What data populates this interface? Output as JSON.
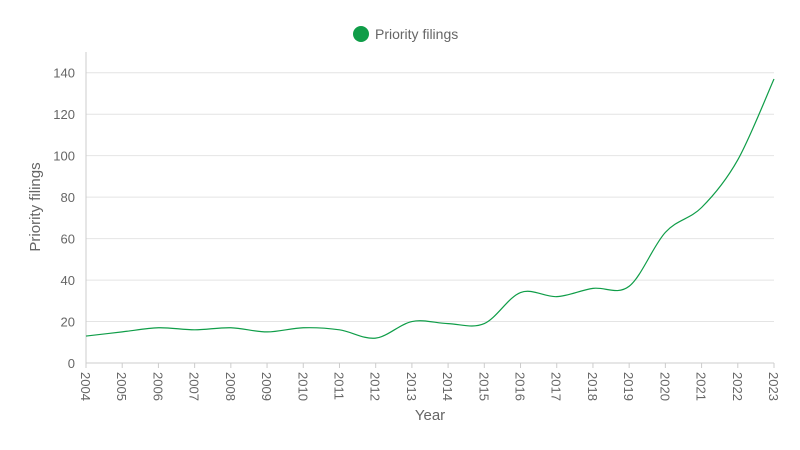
{
  "chart_data": {
    "type": "line",
    "x": [
      "2004",
      "2005",
      "2006",
      "2007",
      "2008",
      "2009",
      "2010",
      "2011",
      "2012",
      "2013",
      "2014",
      "2015",
      "2016",
      "2017",
      "2018",
      "2019",
      "2020",
      "2021",
      "2022",
      "2023"
    ],
    "series": [
      {
        "name": "Priority filings",
        "color": "#0f9d48",
        "values": [
          13,
          15,
          17,
          16,
          17,
          15,
          17,
          16,
          12,
          20,
          19,
          19,
          34,
          32,
          36,
          37,
          63,
          75,
          98,
          137
        ]
      }
    ],
    "xlabel": "Year",
    "ylabel": "Priority filings",
    "ylim": [
      0,
      150
    ],
    "yticks": [
      0,
      20,
      40,
      60,
      80,
      100,
      120,
      140
    ],
    "grid": true,
    "legend_position": "top-center"
  }
}
